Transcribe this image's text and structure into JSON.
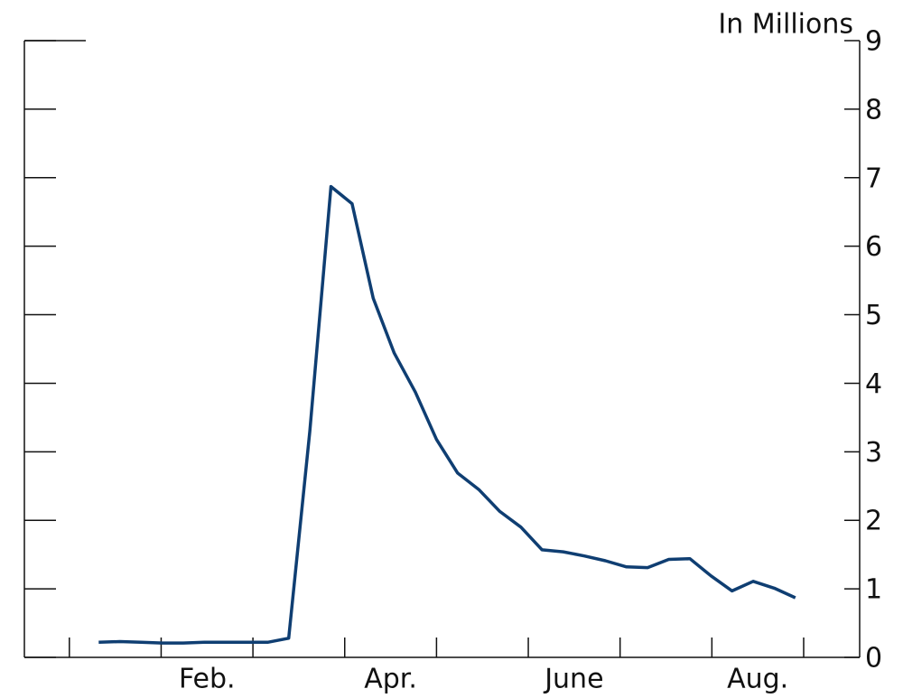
{
  "chart_data": {
    "type": "line",
    "y_axis_label": "In Millions",
    "x": [
      0.32,
      0.55,
      0.78,
      1.01,
      1.24,
      1.47,
      1.7,
      1.93,
      2.16,
      2.39,
      2.62,
      2.85,
      3.08,
      3.31,
      3.54,
      3.77,
      4.0,
      4.23,
      4.46,
      4.69,
      4.92,
      5.15,
      5.38,
      5.61,
      5.84,
      6.07,
      6.3,
      6.53,
      6.76,
      6.99,
      7.22,
      7.45,
      7.68,
      7.91
    ],
    "series": [
      {
        "color": "#0f3e72",
        "values": [
          0.22,
          0.23,
          0.22,
          0.21,
          0.21,
          0.22,
          0.22,
          0.22,
          0.22,
          0.28,
          3.3,
          6.87,
          6.62,
          5.24,
          4.44,
          3.87,
          3.18,
          2.69,
          2.45,
          2.13,
          1.9,
          1.57,
          1.54,
          1.48,
          1.41,
          1.32,
          1.31,
          1.43,
          1.44,
          1.19,
          0.97,
          1.11,
          1.01,
          0.87
        ]
      }
    ],
    "xlim": [
      -0.49,
      8.61
    ],
    "xticks": [
      0,
      1,
      2,
      3,
      4,
      5,
      6,
      7,
      8
    ],
    "xlabels": [
      {
        "value": 1.5,
        "label": "Feb."
      },
      {
        "value": 3.5,
        "label": "Apr."
      },
      {
        "value": 5.5,
        "label": "June"
      },
      {
        "value": 7.5,
        "label": "Aug."
      }
    ],
    "ylim": [
      0,
      9
    ],
    "yticks": [
      0,
      1,
      2,
      3,
      4,
      5,
      6,
      7,
      8,
      9
    ],
    "y_axis_side": "right"
  }
}
